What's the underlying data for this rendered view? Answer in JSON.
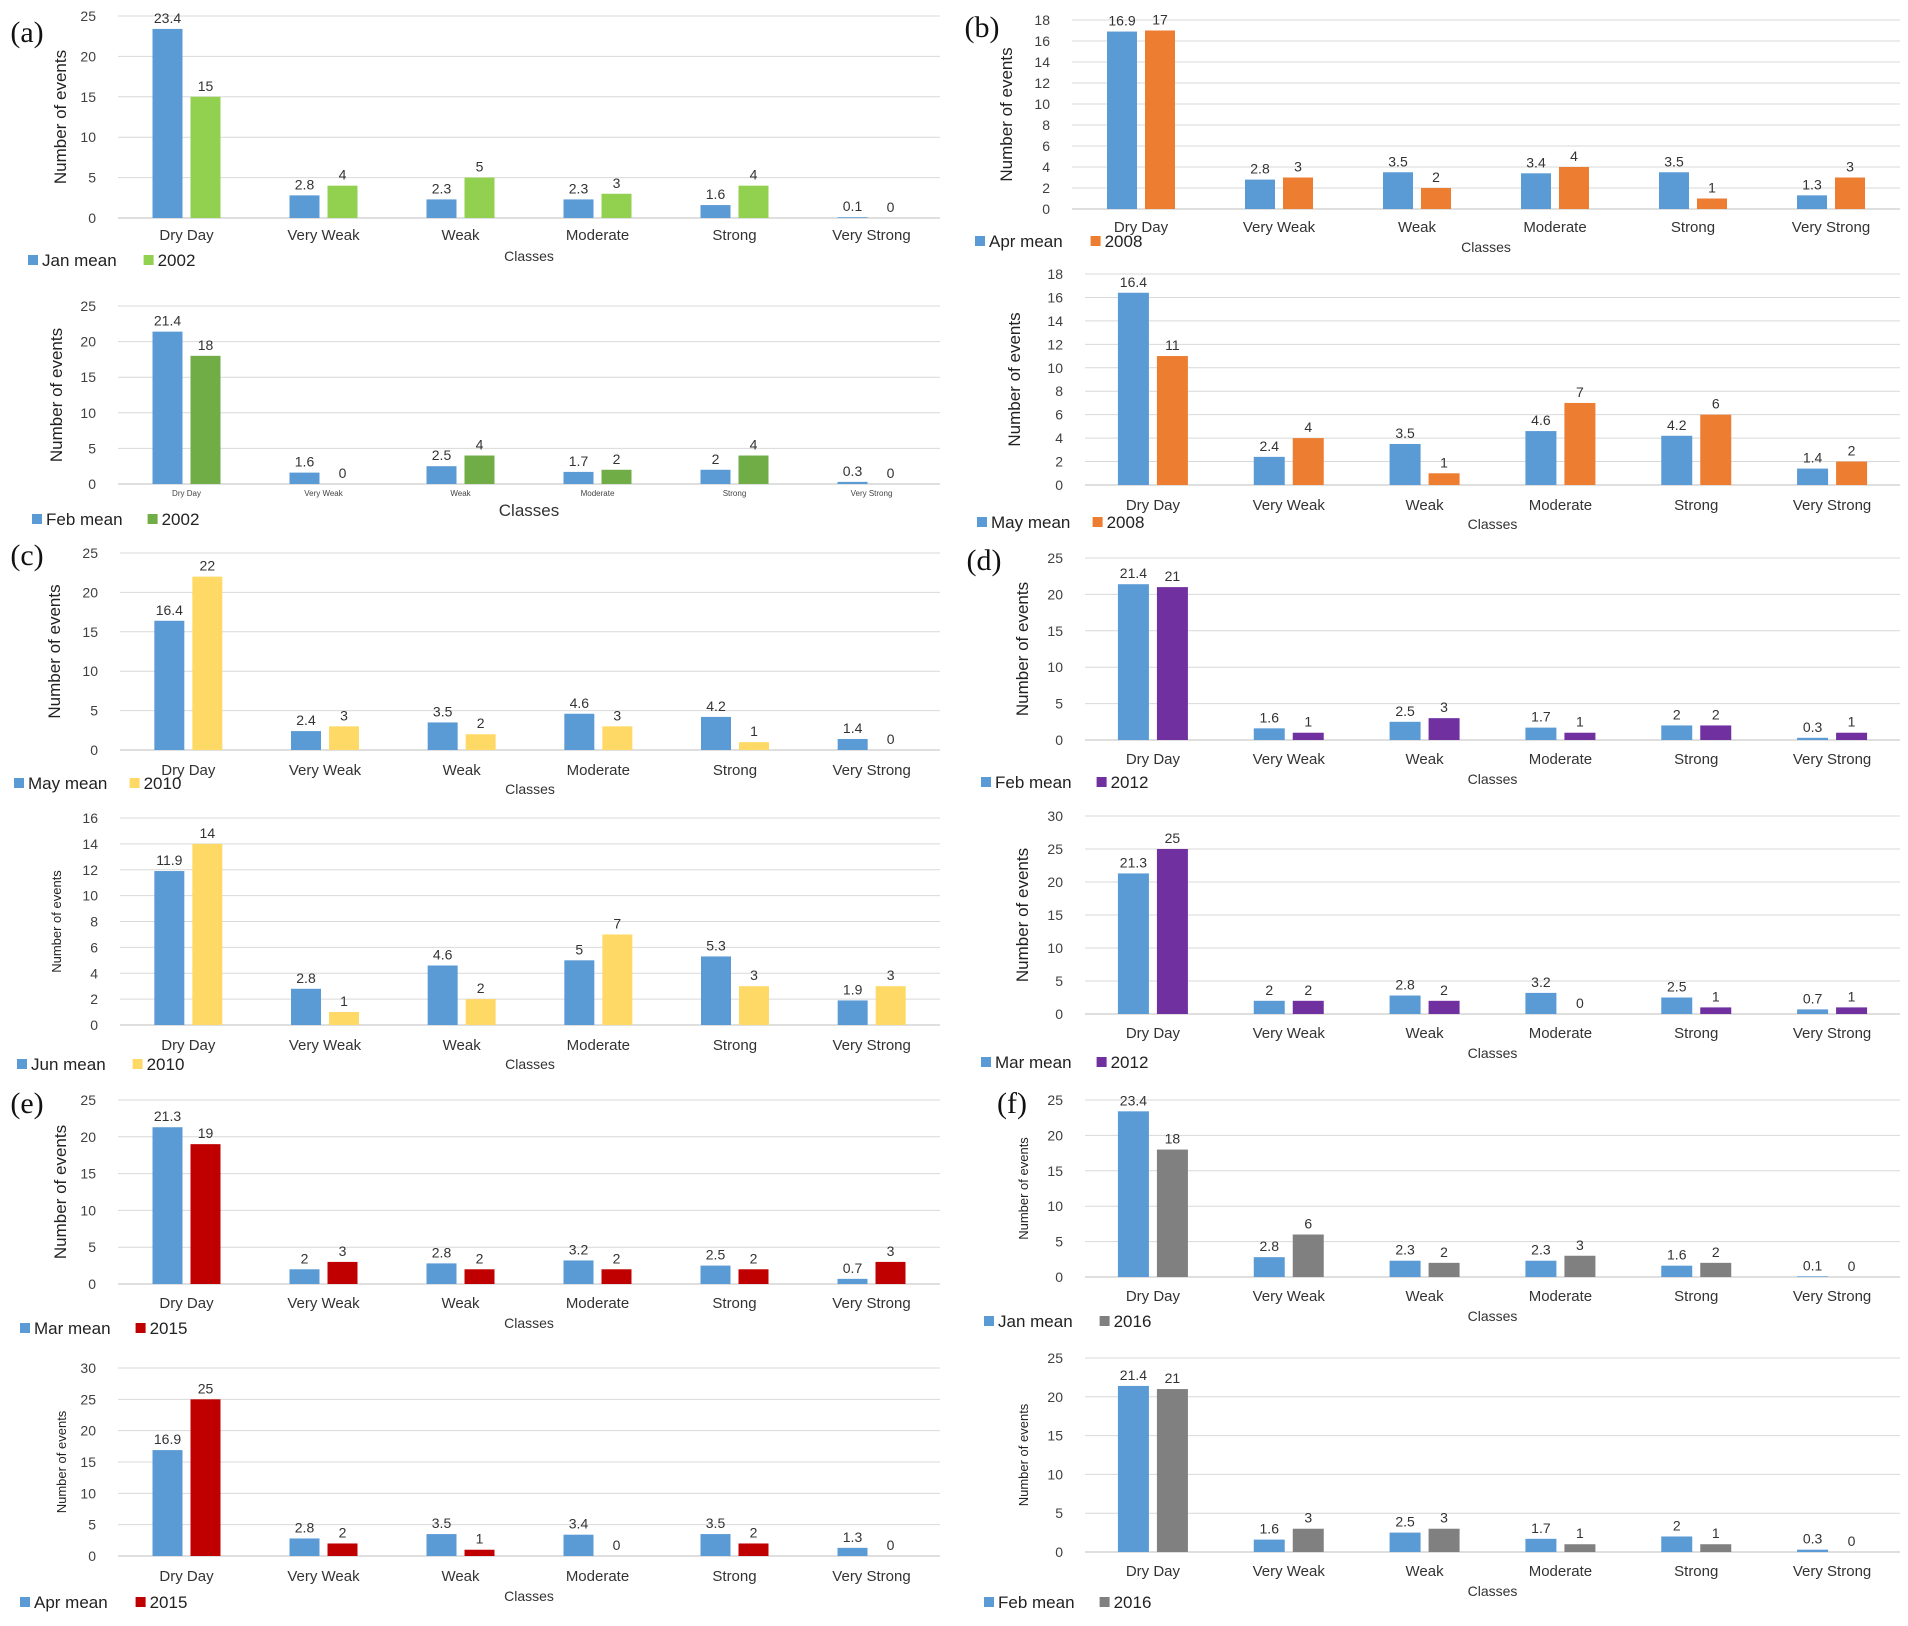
{
  "chart_data": [
    {
      "panel": "(a)",
      "type": "bar",
      "categories": [
        "Dry Day",
        "Very Weak",
        "Weak",
        "Moderate",
        "Strong",
        "Very Strong"
      ],
      "series": [
        {
          "name": "Jan mean",
          "values": [
            23.4,
            2.8,
            2.3,
            2.3,
            1.6,
            0.1
          ],
          "color": "#5b9bd5"
        },
        {
          "name": "2002",
          "values": [
            15,
            4,
            5,
            3,
            4,
            0
          ],
          "color": "#92d050"
        }
      ],
      "ylim": [
        0,
        25
      ],
      "yticks": [
        0,
        5,
        10,
        15,
        20,
        25
      ],
      "ylabel": "Number of events",
      "xlabel": "Classes"
    },
    {
      "panel": "",
      "type": "bar",
      "categories": [
        "Dry Day",
        "Very Weak",
        "Weak",
        "Moderate",
        "Strong",
        "Very Strong"
      ],
      "series": [
        {
          "name": "Feb mean",
          "values": [
            21.4,
            1.6,
            2.5,
            1.7,
            2,
            0.3
          ],
          "color": "#5b9bd5"
        },
        {
          "name": "2002",
          "values": [
            18,
            0,
            4,
            2,
            4,
            0
          ],
          "color": "#70ad47"
        }
      ],
      "ylim": [
        0,
        25
      ],
      "yticks": [
        0,
        5,
        10,
        15,
        20,
        25
      ],
      "ylabel": "Number of events",
      "xlabel": "Classes"
    },
    {
      "panel": "(b)",
      "type": "bar",
      "categories": [
        "Dry Day",
        "Very Weak",
        "Weak",
        "Moderate",
        "Strong",
        "Very Strong"
      ],
      "series": [
        {
          "name": "Apr mean",
          "values": [
            16.9,
            2.8,
            3.5,
            3.4,
            3.5,
            1.3
          ],
          "color": "#5b9bd5"
        },
        {
          "name": "2008",
          "values": [
            17,
            3,
            2,
            4,
            1,
            3
          ],
          "color": "#ed7d31"
        }
      ],
      "ylim": [
        0,
        18
      ],
      "yticks": [
        0,
        2,
        4,
        6,
        8,
        10,
        12,
        14,
        16,
        18
      ],
      "ylabel": "Number of events",
      "xlabel": "Classes"
    },
    {
      "panel": "",
      "type": "bar",
      "categories": [
        "Dry Day",
        "Very Weak",
        "Weak",
        "Moderate",
        "Strong",
        "Very Strong"
      ],
      "series": [
        {
          "name": "May mean",
          "values": [
            16.4,
            2.4,
            3.5,
            4.6,
            4.2,
            1.4
          ],
          "color": "#5b9bd5"
        },
        {
          "name": "2008",
          "values": [
            11,
            4,
            1,
            7,
            6,
            2
          ],
          "color": "#ed7d31"
        }
      ],
      "ylim": [
        0,
        18
      ],
      "yticks": [
        0,
        2,
        4,
        6,
        8,
        10,
        12,
        14,
        16,
        18
      ],
      "ylabel": "Number of events",
      "xlabel": "Classes"
    },
    {
      "panel": "(c)",
      "type": "bar",
      "categories": [
        "Dry Day",
        "Very Weak",
        "Weak",
        "Moderate",
        "Strong",
        "Very Strong"
      ],
      "series": [
        {
          "name": "May mean",
          "values": [
            16.4,
            2.4,
            3.5,
            4.6,
            4.2,
            1.4
          ],
          "color": "#5b9bd5"
        },
        {
          "name": "2010",
          "values": [
            22,
            3,
            2,
            3,
            1,
            0
          ],
          "color": "#ffd966"
        }
      ],
      "ylim": [
        0,
        25
      ],
      "yticks": [
        0,
        5,
        10,
        15,
        20,
        25
      ],
      "ylabel": "Number of events",
      "xlabel": "Classes"
    },
    {
      "panel": "",
      "type": "bar",
      "categories": [
        "Dry Day",
        "Very Weak",
        "Weak",
        "Moderate",
        "Strong",
        "Very Strong"
      ],
      "series": [
        {
          "name": "Jun mean",
          "values": [
            11.9,
            2.8,
            4.6,
            5,
            5.3,
            1.9
          ],
          "color": "#5b9bd5"
        },
        {
          "name": "2010",
          "values": [
            14,
            1,
            2,
            7,
            3,
            3
          ],
          "color": "#ffd966"
        }
      ],
      "ylim": [
        0,
        16
      ],
      "yticks": [
        0,
        2,
        4,
        6,
        8,
        10,
        12,
        14,
        16
      ],
      "ylabel": "Number of events",
      "xlabel": "Classes"
    },
    {
      "panel": "(d)",
      "type": "bar",
      "categories": [
        "Dry Day",
        "Very Weak",
        "Weak",
        "Moderate",
        "Strong",
        "Very Strong"
      ],
      "series": [
        {
          "name": "Feb mean",
          "values": [
            21.4,
            1.6,
            2.5,
            1.7,
            2,
            0.3
          ],
          "color": "#5b9bd5"
        },
        {
          "name": "2012",
          "values": [
            21,
            1,
            3,
            1,
            2,
            1
          ],
          "color": "#7030a0"
        }
      ],
      "ylim": [
        0,
        25
      ],
      "yticks": [
        0,
        5,
        10,
        15,
        20,
        25
      ],
      "ylabel": "Number of events",
      "xlabel": "Classes"
    },
    {
      "panel": "",
      "type": "bar",
      "categories": [
        "Dry Day",
        "Very Weak",
        "Weak",
        "Moderate",
        "Strong",
        "Very Strong"
      ],
      "series": [
        {
          "name": "Mar mean",
          "values": [
            21.3,
            2,
            2.8,
            3.2,
            2.5,
            0.7
          ],
          "color": "#5b9bd5"
        },
        {
          "name": "2012",
          "values": [
            25,
            2,
            2,
            0,
            1,
            1
          ],
          "color": "#7030a0"
        }
      ],
      "ylim": [
        0,
        30
      ],
      "yticks": [
        0,
        5,
        10,
        15,
        20,
        25,
        30
      ],
      "ylabel": "Number of events",
      "xlabel": "Classes"
    },
    {
      "panel": "(e)",
      "type": "bar",
      "categories": [
        "Dry Day",
        "Very Weak",
        "Weak",
        "Moderate",
        "Strong",
        "Very Strong"
      ],
      "series": [
        {
          "name": "Mar mean",
          "values": [
            21.3,
            2,
            2.8,
            3.2,
            2.5,
            0.7
          ],
          "color": "#5b9bd5"
        },
        {
          "name": "2015",
          "values": [
            19,
            3,
            2,
            2,
            2,
            3
          ],
          "color": "#c00000"
        }
      ],
      "ylim": [
        0,
        25
      ],
      "yticks": [
        0,
        5,
        10,
        15,
        20,
        25
      ],
      "ylabel": "Number of events",
      "xlabel": "Classes"
    },
    {
      "panel": "",
      "type": "bar",
      "categories": [
        "Dry Day",
        "Very Weak",
        "Weak",
        "Moderate",
        "Strong",
        "Very Strong"
      ],
      "series": [
        {
          "name": "Apr mean",
          "values": [
            16.9,
            2.8,
            3.5,
            3.4,
            3.5,
            1.3
          ],
          "color": "#5b9bd5"
        },
        {
          "name": "2015",
          "values": [
            25,
            2,
            1,
            0,
            2,
            0
          ],
          "color": "#c00000"
        }
      ],
      "ylim": [
        0,
        30
      ],
      "yticks": [
        0,
        5,
        10,
        15,
        20,
        25,
        30
      ],
      "ylabel": "Number of events",
      "xlabel": "Classes"
    },
    {
      "panel": "(f)",
      "type": "bar",
      "categories": [
        "Dry Day",
        "Very Weak",
        "Weak",
        "Moderate",
        "Strong",
        "Very Strong"
      ],
      "series": [
        {
          "name": "Jan mean",
          "values": [
            23.4,
            2.8,
            2.3,
            2.3,
            1.6,
            0.1
          ],
          "color": "#5b9bd5"
        },
        {
          "name": "2016",
          "values": [
            18,
            6,
            2,
            3,
            2,
            0
          ],
          "color": "#808080"
        }
      ],
      "ylim": [
        0,
        25
      ],
      "yticks": [
        0,
        5,
        10,
        15,
        20,
        25
      ],
      "ylabel": "Number of events",
      "xlabel": "Classes"
    },
    {
      "panel": "",
      "type": "bar",
      "categories": [
        "Dry Day",
        "Very Weak",
        "Weak",
        "Moderate",
        "Strong",
        "Very Strong"
      ],
      "series": [
        {
          "name": "Feb mean",
          "values": [
            21.4,
            1.6,
            2.5,
            1.7,
            2,
            0.3
          ],
          "color": "#5b9bd5"
        },
        {
          "name": "2016",
          "values": [
            21,
            3,
            3,
            1,
            1,
            0
          ],
          "color": "#808080"
        }
      ],
      "ylim": [
        0,
        25
      ],
      "yticks": [
        0,
        5,
        10,
        15,
        20,
        25
      ],
      "ylabel": "Number of events",
      "xlabel": "Classes"
    }
  ]
}
